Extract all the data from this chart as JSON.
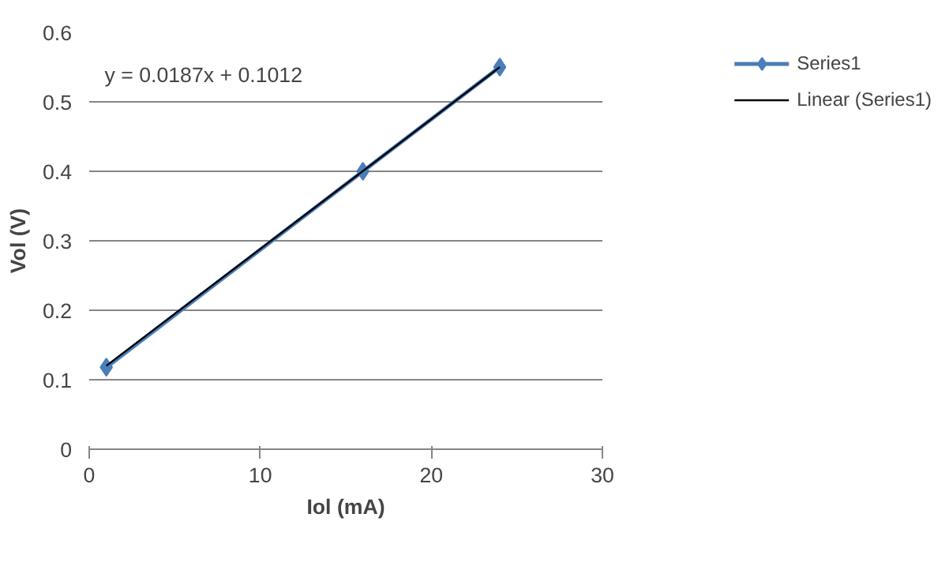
{
  "chart_data": {
    "type": "line",
    "xlabel": "Iol (mA)",
    "ylabel": "Vol (V)",
    "annotations": [
      "y = 0.0187x + 0.1012"
    ],
    "series": [
      {
        "name": "Series1",
        "color": "#4a7ebb",
        "x": [
          1,
          16,
          24
        ],
        "values": [
          0.118,
          0.4,
          0.55
        ],
        "marker": "diamond"
      },
      {
        "name": "Linear (Series1)",
        "color": "#000000",
        "type": "line",
        "x": [
          1,
          24
        ],
        "values": [
          0.12,
          0.55
        ],
        "marker": "none"
      }
    ],
    "xlim": [
      0,
      30
    ],
    "xticks": [
      0,
      10,
      20,
      30
    ],
    "ylim": [
      0,
      0.6
    ],
    "yticks": [
      0,
      0.1,
      0.2,
      0.3,
      0.4,
      0.5,
      0.6
    ],
    "grid": "y",
    "legend": "right"
  }
}
